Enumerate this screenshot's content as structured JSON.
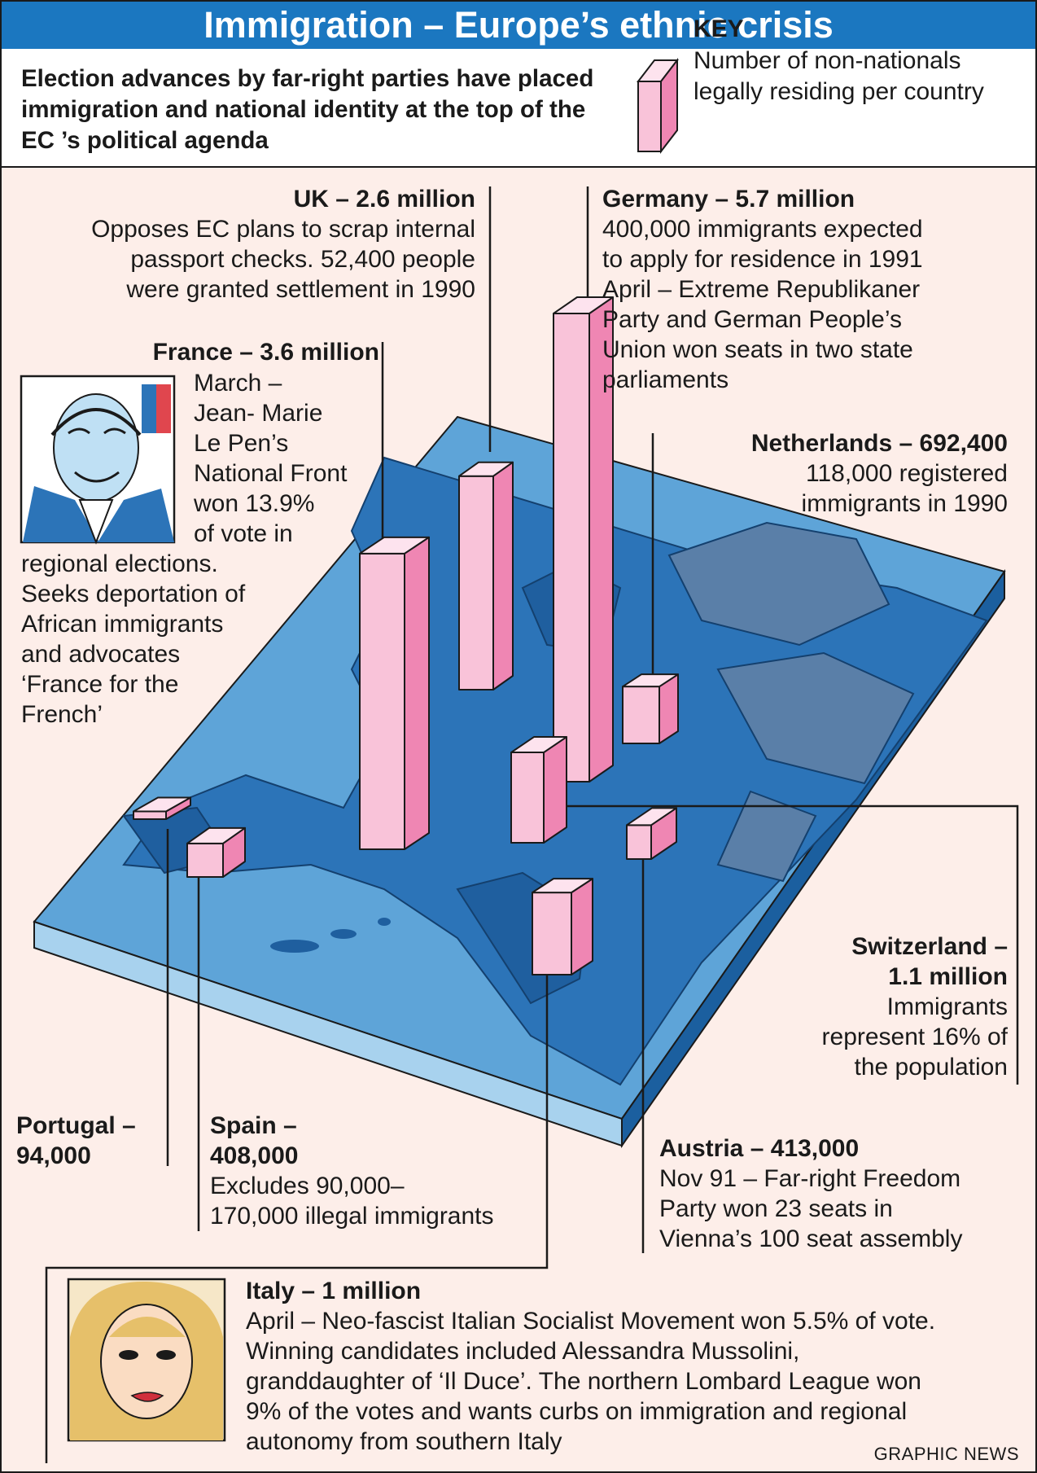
{
  "header": {
    "title": "Immigration – Europe’s ethnic crisis",
    "subtitle": "Election advances by far-right parties have placed immigration and national identity at the top of the EC ’s political agenda"
  },
  "key": {
    "title": "KEY",
    "text": "Number of non-nationals legally residing per country"
  },
  "colors": {
    "title_bar": "#1b77c0",
    "background": "#fdeee9",
    "bar_front": "#f9c3d9",
    "bar_side": "#ef86b3",
    "bar_top": "#fde3ee",
    "sea": "#5ea4d8",
    "land": "#2c74b8"
  },
  "chart_data": {
    "type": "bar",
    "title": "Immigration – Europe’s ethnic crisis",
    "ylabel": "Number of non-nationals legally residing per country",
    "categories": [
      "UK",
      "France",
      "Germany",
      "Netherlands",
      "Switzerland",
      "Austria",
      "Italy",
      "Spain",
      "Portugal"
    ],
    "values": [
      2600000,
      3600000,
      5700000,
      692400,
      1100000,
      413000,
      1000000,
      408000,
      94000
    ]
  },
  "annotations": {
    "uk": {
      "heading": "UK – 2.6 million",
      "body": "Opposes EC plans to scrap internal\npassport checks. 52,400 people\nwere granted settlement in 1990"
    },
    "germany": {
      "heading": "Germany – 5.7 million",
      "body": "400,000 immigrants expected\nto apply for residence in 1991\n     April – Extreme Republikaner\n     Party and German People’s\n     Union won seats in two state\n     parliaments"
    },
    "france": {
      "heading": "France – 3.6 million",
      "body": "March –\nJean- Marie\nLe Pen’s\nNational Front\nwon 13.9%\nof vote in",
      "body2": "regional elections.\nSeeks deportation of\nAfrican immigrants\nand advocates\n‘France for the\nFrench’"
    },
    "netherlands": {
      "heading": "Netherlands – 692,400",
      "body": "118,000 registered\nimmigrants in 1990"
    },
    "switzerland": {
      "heading": "Switzerland –\n1.1 million",
      "body": "Immigrants\nrepresent 16% of\nthe population"
    },
    "portugal": {
      "heading": "Portugal –\n94,000",
      "body": ""
    },
    "spain": {
      "heading": "Spain –\n408,000",
      "body": "Excludes 90,000–\n170,000 illegal immigrants"
    },
    "austria": {
      "heading": "Austria – 413,000",
      "body": "Nov 91 – Far-right Freedom\nParty won 23 seats in\nVienna’s 100 seat assembly"
    },
    "italy": {
      "heading": "Italy – 1 million",
      "body": "April – Neo-fascist Italian Socialist Movement won 5.5% of vote.\nWinning candidates included Alessandra Mussolini,\ngranddaughter of ‘Il Duce’. The northern Lombard League won\n9% of the votes and wants curbs on immigration and regional\nautonomy from southern Italy"
    }
  },
  "credit": "GRAPHIC NEWS"
}
